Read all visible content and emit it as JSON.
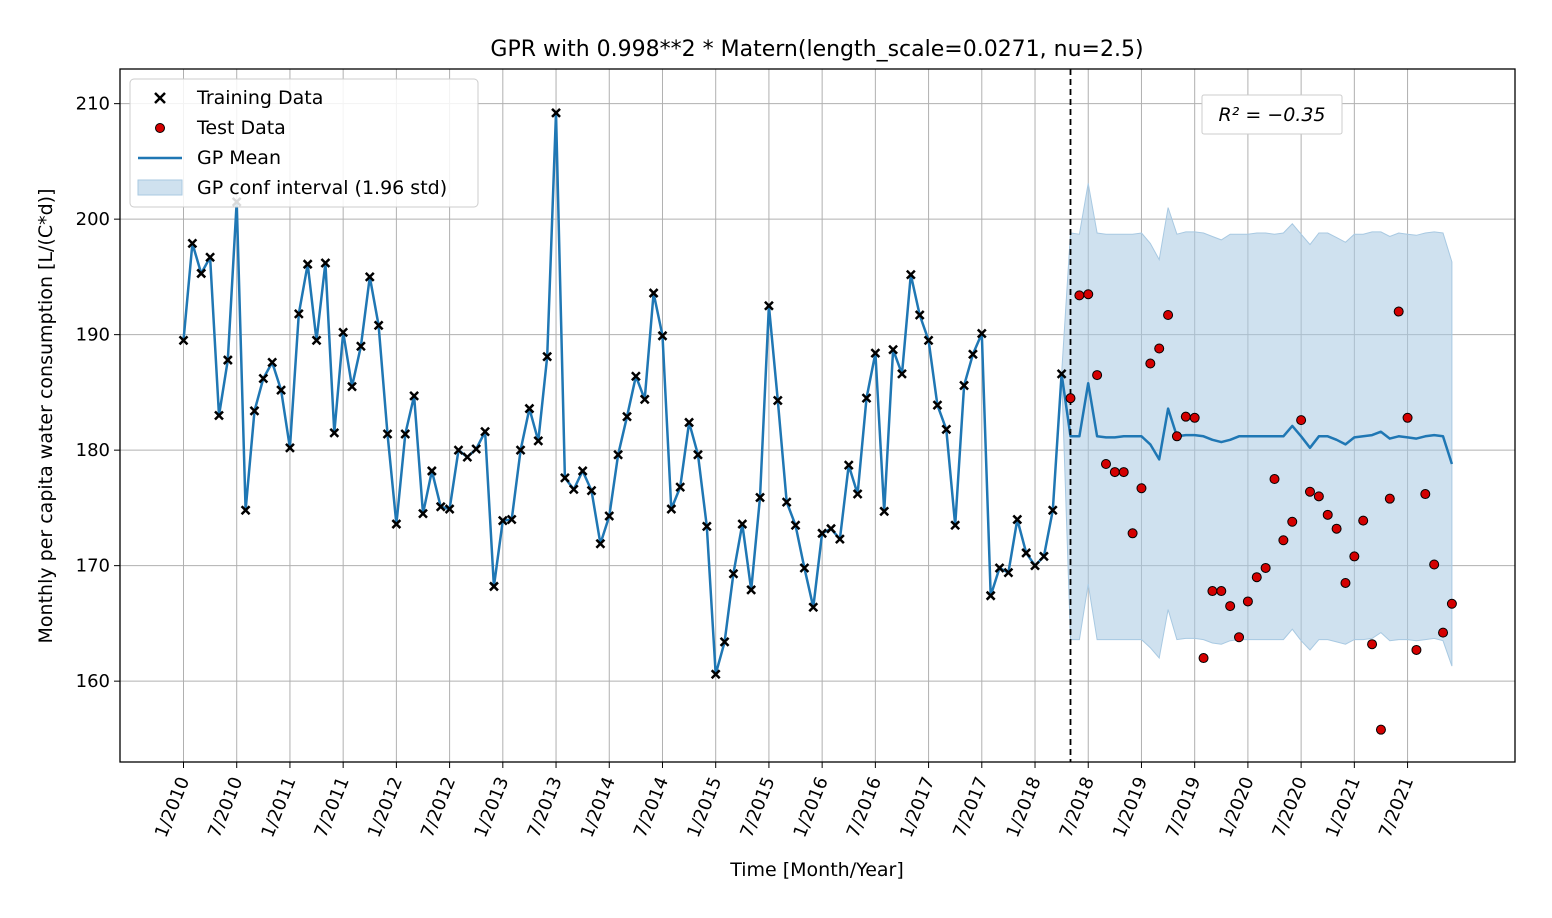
{
  "chart_data": {
    "type": "line",
    "title": "GPR with 0.998**2 * Matern(length_scale=0.0271, nu=2.5)",
    "xlabel": "Time [Month/Year]",
    "ylabel": "Monthly per capita water consumption [L/(C*d)]",
    "ylim": [
      153,
      213
    ],
    "y_ticks": [
      160,
      170,
      180,
      190,
      200,
      210
    ],
    "x_ticks": [
      "1/2010",
      "7/2010",
      "1/2011",
      "7/2011",
      "1/2012",
      "7/2012",
      "1/2013",
      "7/2013",
      "1/2014",
      "7/2014",
      "1/2015",
      "7/2015",
      "1/2016",
      "7/2016",
      "1/2017",
      "7/2017",
      "1/2018",
      "7/2018",
      "1/2019",
      "7/2019",
      "1/2020",
      "7/2020",
      "1/2021",
      "7/2021"
    ],
    "x_start": "1/2010",
    "split_at": "7/2018",
    "grid": true,
    "legend_position": "top-left",
    "legend": [
      {
        "label": "Training Data",
        "marker": "x"
      },
      {
        "label": "Test Data",
        "marker": "circle"
      },
      {
        "label": "GP Mean",
        "marker": "line"
      },
      {
        "label": "GP conf interval (1.96 std)",
        "marker": "patch"
      }
    ],
    "annotation": "R² = −0.35",
    "colors": {
      "mean": "#1f77b4",
      "band": "#a8c9e2",
      "test": "#d40000",
      "train": "#000000"
    },
    "training": [
      189.5,
      197.9,
      195.3,
      196.7,
      183.0,
      187.8,
      201.5,
      174.8,
      183.4,
      186.2,
      187.6,
      185.2,
      180.2,
      191.8,
      196.1,
      189.5,
      196.2,
      181.5,
      190.2,
      185.5,
      189.0,
      195.0,
      190.8,
      181.4,
      173.6,
      181.4,
      184.7,
      174.5,
      178.2,
      175.1,
      174.9,
      180.0,
      179.4,
      180.1,
      181.6,
      168.2,
      173.9,
      174.0,
      180.0,
      183.6,
      180.8,
      188.1,
      209.2,
      177.6,
      176.6,
      178.2,
      176.5,
      171.9,
      174.3,
      179.6,
      182.9,
      186.4,
      184.4,
      193.6,
      189.9,
      174.9,
      176.8,
      182.4,
      179.6,
      173.4,
      160.6,
      163.4,
      169.3,
      173.6,
      167.9,
      175.9,
      192.5,
      184.3,
      175.5,
      173.5,
      169.8,
      166.4,
      172.8,
      173.2,
      172.3,
      178.7,
      176.2,
      184.5,
      188.4,
      174.7,
      188.7,
      186.6,
      195.2,
      191.7,
      189.5,
      183.9,
      181.8,
      173.5,
      185.6,
      188.3,
      190.1,
      167.4,
      169.8,
      169.4,
      174.0,
      171.1,
      170.0,
      170.8,
      174.8,
      186.6
    ],
    "test": [
      184.5,
      193.4,
      193.5,
      186.5,
      178.8,
      178.1,
      178.1,
      172.8,
      176.7,
      187.5,
      188.8,
      191.7,
      181.2,
      182.9,
      182.8,
      162.0,
      167.8,
      167.8,
      166.5,
      163.8,
      166.9,
      169.0,
      169.8,
      177.5,
      172.2,
      173.8,
      182.6,
      176.4,
      176.0,
      174.4,
      173.2,
      168.5,
      170.8,
      173.9,
      163.2,
      155.8,
      175.8,
      192.0,
      182.8,
      162.7,
      176.2,
      170.1,
      164.2,
      166.7
    ],
    "gp_mean": [
      189.5,
      197.9,
      195.3,
      196.7,
      183.0,
      187.8,
      201.5,
      174.8,
      183.4,
      186.2,
      187.6,
      185.2,
      180.2,
      191.8,
      196.1,
      189.5,
      196.2,
      181.5,
      190.2,
      185.5,
      189.0,
      195.0,
      190.8,
      181.4,
      173.6,
      181.4,
      184.7,
      174.5,
      178.2,
      175.1,
      174.9,
      180.0,
      179.4,
      180.1,
      181.6,
      168.2,
      173.9,
      174.0,
      180.0,
      183.6,
      180.8,
      188.1,
      209.2,
      177.6,
      176.6,
      178.2,
      176.5,
      171.9,
      174.3,
      179.6,
      182.9,
      186.4,
      184.4,
      193.6,
      189.9,
      174.9,
      176.8,
      182.4,
      179.6,
      173.4,
      160.6,
      163.4,
      169.3,
      173.6,
      167.9,
      175.9,
      192.5,
      184.3,
      175.5,
      173.5,
      169.8,
      166.4,
      172.8,
      173.2,
      172.3,
      178.7,
      176.2,
      184.5,
      188.4,
      174.7,
      188.7,
      186.6,
      195.2,
      191.7,
      189.5,
      183.9,
      181.8,
      173.5,
      185.6,
      188.3,
      190.1,
      167.4,
      169.8,
      169.4,
      174.0,
      171.1,
      170.0,
      170.8,
      174.8,
      186.6,
      181.2,
      181.2,
      185.8,
      181.2,
      181.1,
      181.1,
      181.2,
      181.2,
      181.2,
      180.5,
      179.2,
      183.6,
      181.2,
      181.3,
      181.3,
      181.2,
      180.9,
      180.7,
      180.9,
      181.2,
      181.2,
      181.2,
      181.2,
      181.2,
      181.2,
      182.1,
      181.2,
      180.2,
      181.2,
      181.2,
      180.9,
      180.5,
      181.1,
      181.2,
      181.3,
      181.6,
      181.0,
      181.2,
      181.1,
      181.0,
      181.2,
      181.3,
      181.2,
      178.8
    ],
    "conf_lower": [
      163.6,
      163.6,
      168.4,
      163.6,
      163.6,
      163.6,
      163.6,
      163.6,
      163.6,
      162.9,
      162.0,
      166.2,
      163.6,
      163.7,
      163.7,
      163.6,
      163.3,
      163.2,
      163.5,
      163.6,
      163.6,
      163.6,
      163.6,
      163.6,
      163.6,
      164.5,
      163.5,
      162.7,
      163.6,
      163.6,
      163.4,
      163.2,
      163.6,
      163.6,
      163.7,
      164.2,
      163.5,
      163.6,
      163.6,
      163.5,
      163.6,
      163.7,
      163.5,
      161.3
    ],
    "conf_upper": [
      198.8,
      198.7,
      203.1,
      198.8,
      198.7,
      198.7,
      198.7,
      198.7,
      198.8,
      197.9,
      196.5,
      201.0,
      198.7,
      198.9,
      198.9,
      198.8,
      198.5,
      198.2,
      198.7,
      198.7,
      198.7,
      198.8,
      198.8,
      198.7,
      198.8,
      199.6,
      198.7,
      197.8,
      198.8,
      198.8,
      198.4,
      198.0,
      198.7,
      198.7,
      198.9,
      198.9,
      198.5,
      198.8,
      198.7,
      198.6,
      198.8,
      198.9,
      198.8,
      196.3
    ]
  }
}
